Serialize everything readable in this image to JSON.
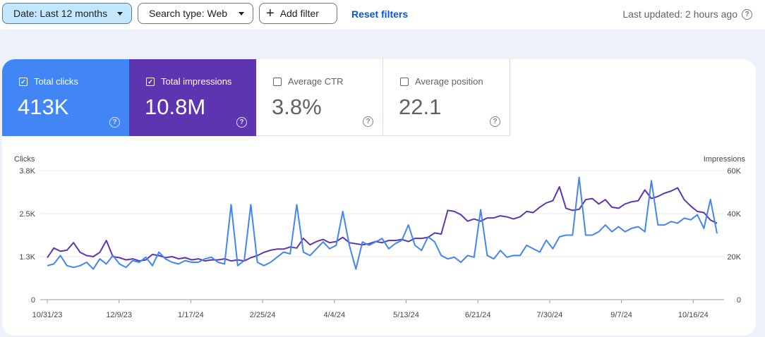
{
  "toolbar": {
    "date_label": "Date: Last 12 months",
    "search_type_label": "Search type: Web",
    "add_filter_label": "Add filter",
    "reset_label": "Reset filters",
    "last_updated": "Last updated: 2 hours ago"
  },
  "metrics": {
    "clicks": {
      "label": "Total clicks",
      "value": "413K",
      "checked": true,
      "color": "#4285f4"
    },
    "impressions": {
      "label": "Total impressions",
      "value": "10.8M",
      "checked": true,
      "color": "#5e35b1"
    },
    "ctr": {
      "label": "Average CTR",
      "value": "3.8%",
      "checked": false
    },
    "position": {
      "label": "Average position",
      "value": "22.1",
      "checked": false
    }
  },
  "icons": {
    "help": "help-circle-icon",
    "dropdown": "caret-down-icon",
    "add": "plus-icon",
    "checkbox": "checkbox-icon"
  },
  "chart_data": {
    "type": "line",
    "left_axis": {
      "label": "Clicks",
      "ticks": [
        "3.8K",
        "2.5K",
        "1.3K",
        "0"
      ],
      "range": [
        0,
        3800
      ]
    },
    "right_axis": {
      "label": "Impressions",
      "ticks": [
        "60K",
        "40K",
        "20K",
        "0"
      ],
      "range": [
        0,
        60000
      ]
    },
    "x_ticks": [
      "10/31/23",
      "12/9/23",
      "1/17/24",
      "2/25/24",
      "4/4/24",
      "5/13/24",
      "6/21/24",
      "7/30/24",
      "9/7/24",
      "10/16/24"
    ],
    "grid": true,
    "series": [
      {
        "name": "Clicks",
        "axis": "left",
        "color": "#4285f4",
        "values": [
          1000,
          1050,
          1300,
          1000,
          950,
          1000,
          1100,
          900,
          1200,
          1050,
          1300,
          1050,
          950,
          1150,
          1100,
          1250,
          1000,
          1400,
          1200,
          1100,
          1050,
          1150,
          1100,
          1100,
          1200,
          1250,
          1100,
          1050,
          2800,
          1000,
          1150,
          2800,
          1100,
          1000,
          1100,
          1250,
          1400,
          1350,
          2800,
          1400,
          1300,
          1500,
          1700,
          1500,
          1600,
          2600,
          1600,
          900,
          1700,
          1600,
          1700,
          1800,
          1500,
          1650,
          1750,
          2200,
          1600,
          1450,
          1850,
          1700,
          1300,
          1200,
          1250,
          1100,
          1300,
          1250,
          2650,
          1300,
          1200,
          1450,
          1250,
          1300,
          1300,
          1600,
          1500,
          1400,
          1750,
          1500,
          1850,
          1900,
          1900,
          3600,
          1900,
          1900,
          2000,
          2200,
          2000,
          2150,
          2000,
          2100,
          2150,
          2000,
          3500,
          2200,
          2200,
          2300,
          2250,
          2400,
          2350,
          2500,
          2100,
          2950,
          1950
        ]
      },
      {
        "name": "Impressions",
        "axis": "right",
        "color": "#5e35b1",
        "values": [
          19500,
          24000,
          22500,
          23000,
          26500,
          22000,
          20500,
          20000,
          22000,
          27500,
          20000,
          19500,
          18500,
          19000,
          18000,
          18500,
          21000,
          20500,
          19500,
          20000,
          19000,
          19500,
          18500,
          19000,
          18000,
          18500,
          18500,
          19000,
          18000,
          18500,
          18000,
          19500,
          20500,
          22000,
          23000,
          23500,
          23500,
          24500,
          24000,
          28500,
          25500,
          27000,
          28000,
          26500,
          27000,
          29000,
          26500,
          26000,
          25500,
          26000,
          27000,
          26500,
          27500,
          27500,
          28000,
          27000,
          28500,
          28500,
          29000,
          31000,
          30500,
          41500,
          41000,
          39500,
          36500,
          37500,
          36500,
          38000,
          38000,
          39000,
          38500,
          37500,
          38500,
          41000,
          40500,
          43000,
          45000,
          46000,
          52500,
          42500,
          41500,
          42000,
          46500,
          47000,
          44500,
          46500,
          43000,
          42500,
          44500,
          45500,
          46000,
          51000,
          47000,
          48000,
          49500,
          50500,
          52000,
          46500,
          43500,
          41000,
          40500,
          37000,
          35500
        ]
      }
    ]
  }
}
